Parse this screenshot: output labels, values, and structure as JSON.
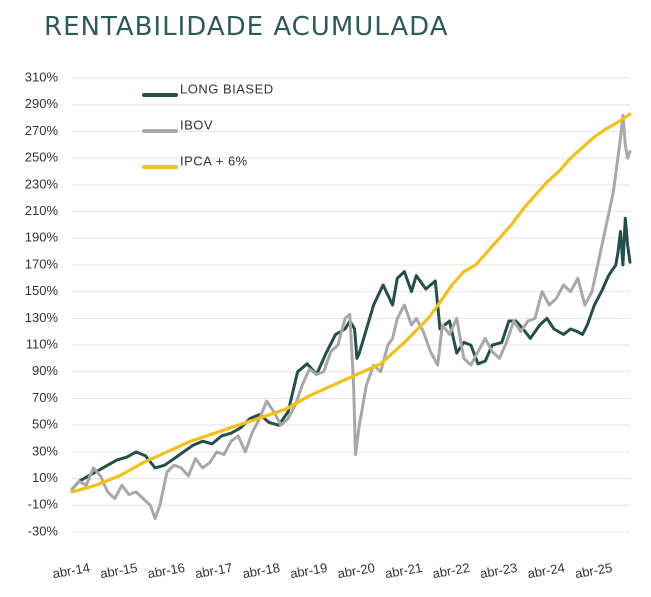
{
  "chart_data": {
    "type": "line",
    "title": "RENTABILIDADE ACUMULADA",
    "xlabel": "",
    "ylabel": "",
    "x_ticks": [
      "abr-14",
      "abr-15",
      "abr-16",
      "abr-17",
      "abr-18",
      "abr-19",
      "abr-20",
      "abr-21",
      "abr-22",
      "abr-23",
      "abr-24",
      "abr-25"
    ],
    "y_ticks": [
      "310%",
      "290%",
      "270%",
      "250%",
      "230%",
      "210%",
      "190%",
      "170%",
      "150%",
      "130%",
      "110%",
      "90%",
      "70%",
      "50%",
      "30%",
      "10%",
      "-10%",
      "-30%"
    ],
    "ylim": [
      -30,
      310
    ],
    "xlim": [
      2014.25,
      2026.0
    ],
    "grid": "horizontal",
    "legend_position": "top-left",
    "series": [
      {
        "name": "LONG BIASED",
        "color": "#244f4b",
        "x": [
          2014.25,
          2014.4,
          2014.6,
          2014.75,
          2014.9,
          2015.0,
          2015.2,
          2015.4,
          2015.6,
          2015.8,
          2016.0,
          2016.2,
          2016.4,
          2016.6,
          2016.8,
          2017.0,
          2017.2,
          2017.4,
          2017.6,
          2017.8,
          2018.0,
          2018.2,
          2018.4,
          2018.6,
          2018.8,
          2019.0,
          2019.2,
          2019.4,
          2019.6,
          2019.8,
          2020.0,
          2020.1,
          2020.2,
          2020.25,
          2020.3,
          2020.4,
          2020.6,
          2020.8,
          2021.0,
          2021.1,
          2021.25,
          2021.4,
          2021.5,
          2021.7,
          2021.9,
          2022.0,
          2022.2,
          2022.35,
          2022.5,
          2022.65,
          2022.8,
          2022.95,
          2023.1,
          2023.3,
          2023.45,
          2023.6,
          2023.75,
          2023.9,
          2024.1,
          2024.25,
          2024.4,
          2024.6,
          2024.75,
          2024.9,
          2025.0,
          2025.1,
          2025.25,
          2025.4,
          2025.55,
          2025.7,
          2025.75,
          2025.8,
          2025.85,
          2025.9,
          2025.95,
          2026.0
        ],
        "values": [
          2,
          8,
          12,
          15,
          18,
          20,
          24,
          26,
          30,
          27,
          18,
          20,
          25,
          30,
          35,
          38,
          36,
          42,
          44,
          48,
          55,
          58,
          52,
          50,
          60,
          90,
          96,
          88,
          104,
          118,
          122,
          128,
          122,
          100,
          104,
          116,
          140,
          155,
          140,
          160,
          165,
          150,
          162,
          152,
          158,
          122,
          128,
          104,
          112,
          110,
          96,
          98,
          110,
          112,
          128,
          128,
          122,
          115,
          125,
          130,
          122,
          118,
          122,
          120,
          118,
          125,
          140,
          150,
          162,
          170,
          180,
          195,
          170,
          205,
          185,
          172
        ]
      },
      {
        "name": "IBOV",
        "color": "#a8a8a8",
        "x": [
          2014.25,
          2014.4,
          2014.55,
          2014.7,
          2014.85,
          2015.0,
          2015.15,
          2015.3,
          2015.45,
          2015.6,
          2015.75,
          2015.9,
          2016.0,
          2016.1,
          2016.25,
          2016.4,
          2016.55,
          2016.7,
          2016.85,
          2017.0,
          2017.15,
          2017.3,
          2017.45,
          2017.6,
          2017.75,
          2017.9,
          2018.05,
          2018.2,
          2018.35,
          2018.5,
          2018.65,
          2018.8,
          2018.95,
          2019.1,
          2019.25,
          2019.4,
          2019.55,
          2019.7,
          2019.85,
          2020.0,
          2020.1,
          2020.15,
          2020.18,
          2020.22,
          2020.3,
          2020.45,
          2020.6,
          2020.75,
          2020.9,
          2021.0,
          2021.1,
          2021.25,
          2021.4,
          2021.5,
          2021.65,
          2021.8,
          2021.95,
          2022.05,
          2022.2,
          2022.35,
          2022.5,
          2022.65,
          2022.8,
          2022.95,
          2023.1,
          2023.25,
          2023.4,
          2023.55,
          2023.7,
          2023.85,
          2024.0,
          2024.15,
          2024.3,
          2024.45,
          2024.6,
          2024.75,
          2024.9,
          2025.05,
          2025.2,
          2025.35,
          2025.5,
          2025.65,
          2025.8,
          2025.85,
          2025.9,
          2025.95,
          2026.0
        ],
        "values": [
          2,
          8,
          5,
          18,
          12,
          0,
          -5,
          5,
          -2,
          0,
          -5,
          -10,
          -20,
          -10,
          15,
          20,
          18,
          12,
          25,
          18,
          22,
          30,
          28,
          38,
          42,
          30,
          45,
          55,
          68,
          60,
          50,
          55,
          65,
          80,
          92,
          88,
          90,
          105,
          110,
          130,
          133,
          100,
          80,
          28,
          50,
          80,
          95,
          90,
          110,
          115,
          130,
          140,
          125,
          130,
          120,
          105,
          95,
          125,
          118,
          130,
          100,
          95,
          105,
          115,
          105,
          100,
          112,
          128,
          120,
          128,
          130,
          150,
          140,
          145,
          155,
          150,
          160,
          140,
          150,
          175,
          200,
          225,
          265,
          282,
          260,
          250,
          255
        ]
      },
      {
        "name": "IPCA + 6%",
        "color": "#f5bf1a",
        "x": [
          2014.25,
          2014.75,
          2015.25,
          2015.75,
          2016.25,
          2016.75,
          2017.25,
          2017.75,
          2018.25,
          2018.75,
          2019.25,
          2019.75,
          2020.25,
          2020.75,
          2021.25,
          2021.75,
          2022.0,
          2022.25,
          2022.5,
          2022.75,
          2023.0,
          2023.25,
          2023.5,
          2023.75,
          2024.0,
          2024.25,
          2024.5,
          2024.75,
          2025.0,
          2025.25,
          2025.5,
          2025.75,
          2026.0
        ],
        "values": [
          0,
          5,
          12,
          22,
          30,
          38,
          44,
          50,
          56,
          62,
          72,
          80,
          88,
          96,
          112,
          130,
          142,
          155,
          165,
          170,
          180,
          190,
          200,
          212,
          222,
          232,
          240,
          250,
          258,
          266,
          272,
          277,
          283
        ]
      }
    ]
  }
}
